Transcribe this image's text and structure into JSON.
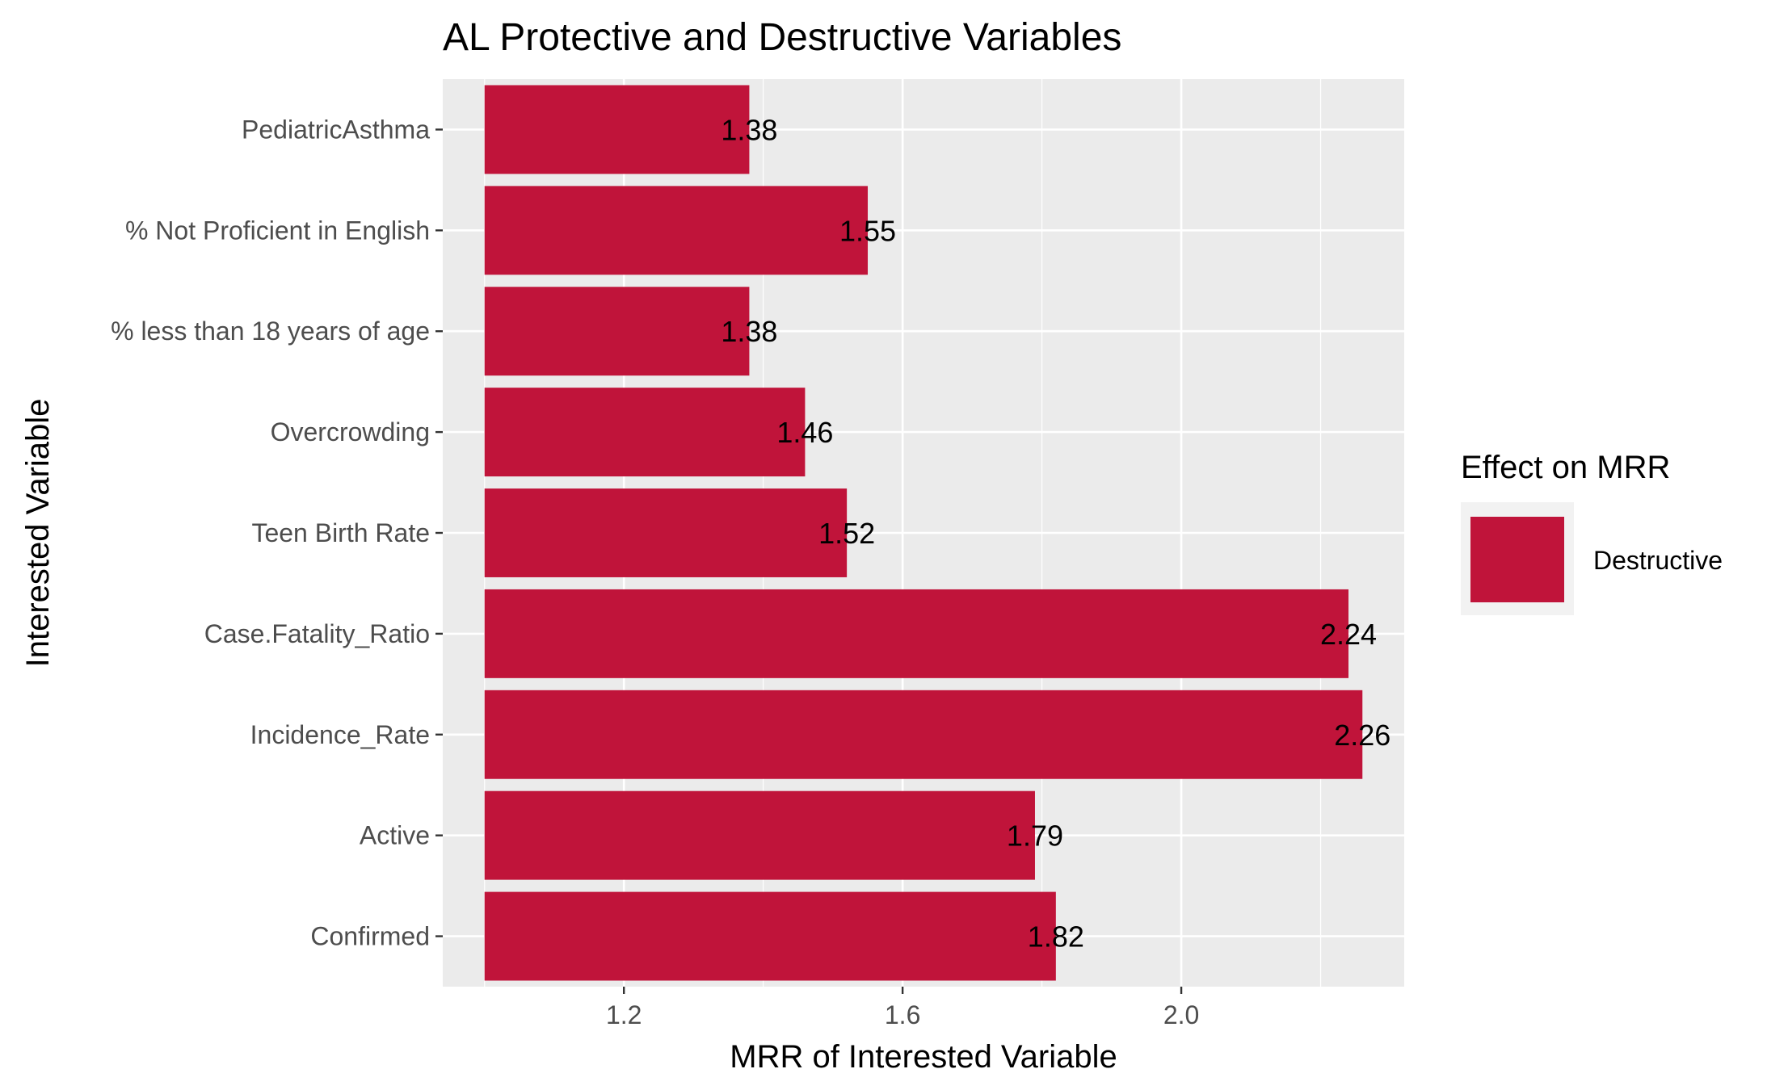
{
  "chart_data": {
    "type": "bar",
    "orientation": "horizontal",
    "title": "AL Protective and Destructive Variables",
    "xlabel": "MRR of Interested Variable",
    "ylabel": "Interested Variable",
    "categories": [
      "PediatricAsthma",
      "% Not Proficient in English",
      "% less than 18 years of age",
      "Overcrowding",
      "Teen Birth Rate",
      "Case.Fatality_Ratio",
      "Incidence_Rate",
      "Active",
      "Confirmed"
    ],
    "values": [
      1.38,
      1.55,
      1.38,
      1.46,
      1.52,
      2.24,
      2.26,
      1.79,
      1.82
    ],
    "data_labels": [
      "1.38",
      "1.55",
      "1.38",
      "1.46",
      "1.52",
      "2.24",
      "2.26",
      "1.79",
      "1.82"
    ],
    "bar_base": 1.0,
    "xlim": [
      0.94,
      2.32
    ],
    "x_ticks": [
      1.2,
      1.6,
      2.0
    ],
    "x_tick_labels": [
      "1.2",
      "1.6",
      "2.0"
    ],
    "grid": true,
    "legend": {
      "title": "Effect on MRR",
      "placement": "right",
      "entries": [
        {
          "label": "Destructive",
          "color": "#c0143a"
        }
      ]
    },
    "colors": {
      "bar": "#c0143a",
      "panel": "#ebebeb",
      "grid": "#ffffff"
    }
  }
}
